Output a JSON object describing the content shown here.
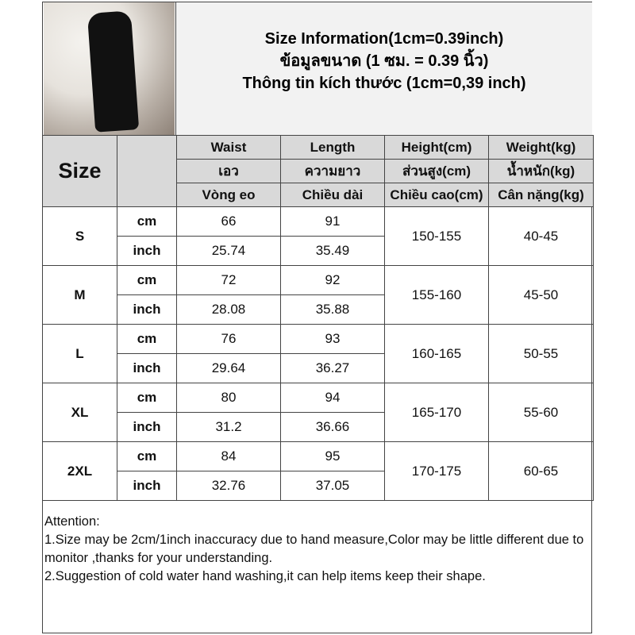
{
  "title": {
    "line1": "Size Information(1cm=0.39inch)",
    "line2": "ข้อมูลขนาด (1 ซม. = 0.39 นิ้ว)",
    "line3": "Thông tin kích thước (1cm=0,39 inch)"
  },
  "header": {
    "size": "Size",
    "columns": [
      {
        "en": "Waist",
        "th": "เอว",
        "vi": "Vòng eo"
      },
      {
        "en": "Length",
        "th": "ความยาว",
        "vi": "Chiều dài"
      },
      {
        "en": "Height(cm)",
        "th": "ส่วนสูง(cm)",
        "vi": "Chiều cao(cm)"
      },
      {
        "en": "Weight(kg)",
        "th": "น้ำหนัก(kg)",
        "vi": "Cân nặng(kg)"
      }
    ]
  },
  "rows": [
    {
      "size": "S",
      "cm_label": "cm",
      "inch_label": "inch",
      "waist_cm": "66",
      "length_cm": "91",
      "waist_in": "25.74",
      "length_in": "35.49",
      "height": "150-155",
      "weight": "40-45"
    },
    {
      "size": "M",
      "cm_label": "cm",
      "inch_label": "inch",
      "waist_cm": "72",
      "length_cm": "92",
      "waist_in": "28.08",
      "length_in": "35.88",
      "height": "155-160",
      "weight": "45-50"
    },
    {
      "size": "L",
      "cm_label": "cm",
      "inch_label": "inch",
      "waist_cm": "76",
      "length_cm": "93",
      "waist_in": "29.64",
      "length_in": "36.27",
      "height": "160-165",
      "weight": "50-55"
    },
    {
      "size": "XL",
      "cm_label": "cm",
      "inch_label": "inch",
      "waist_cm": "80",
      "length_cm": "94",
      "waist_in": "31.2",
      "length_in": "36.66",
      "height": "165-170",
      "weight": "55-60"
    },
    {
      "size": "2XL",
      "cm_label": "cm",
      "inch_label": "inch",
      "waist_cm": "84",
      "length_cm": "95",
      "waist_in": "32.76",
      "length_in": "37.05",
      "height": "170-175",
      "weight": "60-65"
    }
  ],
  "attention": {
    "heading": "Attention:",
    "note1": "1.Size may be 2cm/1inch inaccuracy due to hand measure,Color may be little different due to monitor ,thanks for your understanding.",
    "note2": "2.Suggestion of cold water hand washing,it can help items keep their shape."
  }
}
